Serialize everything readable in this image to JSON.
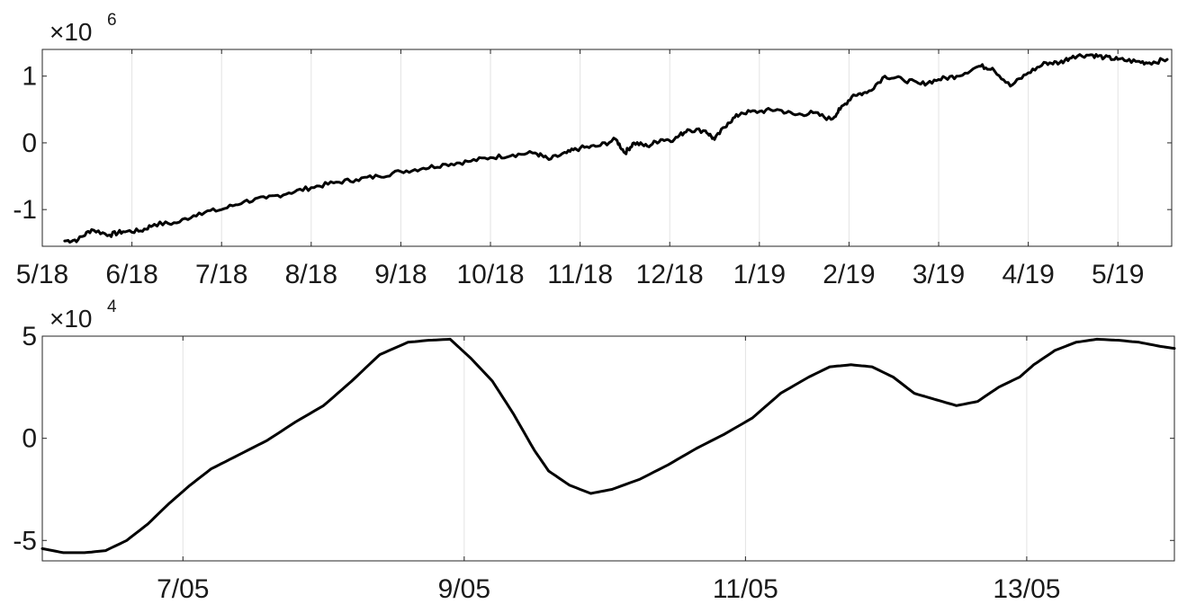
{
  "chart_data": [
    {
      "type": "line",
      "title": "",
      "xlabel": "",
      "ylabel": "",
      "y_multiplier": "×10",
      "y_exponent": "6",
      "ylim": [
        -1.55,
        1.4
      ],
      "yticks": [
        -1,
        0,
        1
      ],
      "ytick_labels": [
        "-1",
        "0",
        "1"
      ],
      "xlim": [
        0,
        12.6
      ],
      "xticks": [
        0,
        1,
        2,
        3,
        4,
        5,
        6,
        7,
        8,
        9,
        10,
        11,
        12
      ],
      "xtick_labels": [
        "5/18",
        "6/18",
        "7/18",
        "8/18",
        "9/18",
        "10/18",
        "11/18",
        "12/18",
        "1/19",
        "2/19",
        "3/19",
        "4/19",
        "5/19"
      ],
      "grid": "vertical",
      "series": [
        {
          "color": "#000000",
          "x": [
            0.25,
            0.4,
            0.55,
            0.75,
            0.9,
            1.1,
            1.25,
            1.5,
            1.75,
            2.0,
            2.25,
            2.5,
            2.75,
            3.0,
            3.25,
            3.5,
            3.75,
            4.0,
            4.25,
            4.5,
            4.75,
            5.0,
            5.25,
            5.5,
            5.65,
            5.85,
            6.0,
            6.2,
            6.4,
            6.5,
            6.6,
            6.75,
            6.9,
            7.05,
            7.2,
            7.4,
            7.5,
            7.65,
            7.8,
            8.0,
            8.2,
            8.4,
            8.6,
            8.8,
            8.9,
            9.05,
            9.2,
            9.4,
            9.6,
            9.8,
            10.0,
            10.2,
            10.45,
            10.6,
            10.8,
            11.0,
            11.2,
            11.35,
            11.5,
            11.7,
            11.85,
            12.0,
            12.2,
            12.35,
            12.55
          ],
          "y": [
            -1.47,
            -1.45,
            -1.3,
            -1.38,
            -1.33,
            -1.32,
            -1.22,
            -1.2,
            -1.05,
            -1.0,
            -0.88,
            -0.83,
            -0.75,
            -0.67,
            -0.6,
            -0.55,
            -0.5,
            -0.43,
            -0.38,
            -0.32,
            -0.28,
            -0.22,
            -0.18,
            -0.15,
            -0.25,
            -0.15,
            -0.08,
            -0.05,
            0.05,
            -0.15,
            0.0,
            -0.05,
            0.05,
            0.05,
            0.2,
            0.18,
            0.05,
            0.3,
            0.45,
            0.47,
            0.5,
            0.42,
            0.45,
            0.35,
            0.5,
            0.72,
            0.75,
            1.0,
            0.95,
            0.88,
            0.95,
            1.0,
            1.15,
            1.12,
            0.85,
            1.05,
            1.2,
            1.2,
            1.3,
            1.32,
            1.28,
            1.25,
            1.22,
            1.2,
            1.25
          ]
        }
      ]
    },
    {
      "type": "line",
      "title": "",
      "xlabel": "",
      "ylabel": "",
      "y_multiplier": "×10",
      "y_exponent": "4",
      "ylim": [
        -6,
        5
      ],
      "yticks": [
        -5,
        0,
        5
      ],
      "ytick_labels": [
        "-5",
        "0",
        "5"
      ],
      "xlim": [
        6.0,
        14.05
      ],
      "xticks": [
        7,
        9,
        11,
        13
      ],
      "xtick_labels": [
        "7/05",
        "9/05",
        "11/05",
        "13/05"
      ],
      "grid": "vertical",
      "series": [
        {
          "color": "#000000",
          "x": [
            6.0,
            6.15,
            6.3,
            6.45,
            6.6,
            6.75,
            6.9,
            7.05,
            7.2,
            7.4,
            7.6,
            7.8,
            8.0,
            8.2,
            8.4,
            8.6,
            8.75,
            8.9,
            9.05,
            9.2,
            9.35,
            9.5,
            9.6,
            9.75,
            9.9,
            10.05,
            10.25,
            10.45,
            10.65,
            10.85,
            11.05,
            11.25,
            11.45,
            11.6,
            11.75,
            11.9,
            12.05,
            12.2,
            12.35,
            12.5,
            12.65,
            12.8,
            12.95,
            13.05,
            13.2,
            13.35,
            13.5,
            13.65,
            13.8,
            13.95,
            14.05
          ],
          "y": [
            -5.4,
            -5.6,
            -5.6,
            -5.5,
            -5.0,
            -4.2,
            -3.2,
            -2.3,
            -1.5,
            -0.8,
            -0.1,
            0.8,
            1.6,
            2.8,
            4.1,
            4.7,
            4.8,
            4.85,
            3.9,
            2.8,
            1.2,
            -0.6,
            -1.6,
            -2.3,
            -2.7,
            -2.5,
            -2.0,
            -1.3,
            -0.5,
            0.2,
            1.0,
            2.2,
            3.0,
            3.5,
            3.6,
            3.5,
            3.0,
            2.2,
            1.9,
            1.6,
            1.8,
            2.5,
            3.0,
            3.6,
            4.3,
            4.7,
            4.85,
            4.8,
            4.7,
            4.5,
            4.4
          ]
        }
      ]
    }
  ]
}
